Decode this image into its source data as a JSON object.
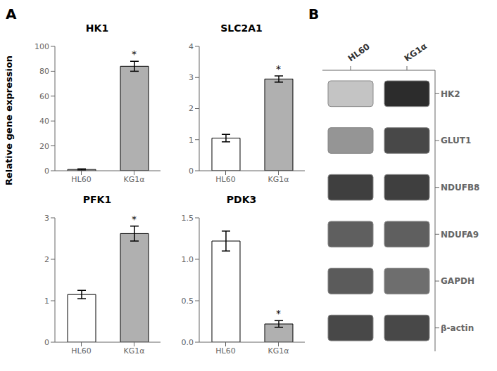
{
  "chart_data": [
    {
      "type": "bar",
      "title": "HK1",
      "ylabel": "Relative gene expression",
      "categories": [
        "HL60",
        "KG1α"
      ],
      "values": [
        1.0,
        84.0
      ],
      "errors": [
        0.5,
        4.0
      ],
      "colors": [
        "white",
        "#b0b0b0"
      ],
      "ylim": [
        0,
        100
      ],
      "yticks": [
        0,
        20,
        40,
        60,
        80,
        100
      ],
      "annotations": [
        {
          "text": "A"
        },
        {
          "text": "*",
          "category": "KG1α"
        }
      ]
    },
    {
      "type": "bar",
      "title": "SLC2A1",
      "categories": [
        "HL60",
        "KG1α"
      ],
      "values": [
        1.05,
        2.95
      ],
      "errors": [
        0.12,
        0.1
      ],
      "colors": [
        "white",
        "#b0b0b0"
      ],
      "ylim": [
        0,
        4
      ],
      "yticks": [
        0,
        1,
        2,
        3,
        4
      ],
      "annotations": [
        {
          "text": "*",
          "category": "KG1α"
        }
      ]
    },
    {
      "type": "bar",
      "title": "PFK1",
      "categories": [
        "HL60",
        "KG1α"
      ],
      "values": [
        1.15,
        2.62
      ],
      "errors": [
        0.1,
        0.18
      ],
      "colors": [
        "white",
        "#b0b0b0"
      ],
      "ylim": [
        0,
        3
      ],
      "yticks": [
        0,
        1,
        2,
        3
      ],
      "annotations": [
        {
          "text": "*",
          "category": "KG1α"
        }
      ]
    },
    {
      "type": "bar",
      "title": "PDK3",
      "categories": [
        "HL60",
        "KG1α"
      ],
      "values": [
        1.22,
        0.22
      ],
      "errors": [
        0.12,
        0.04
      ],
      "colors": [
        "white",
        "#b0b0b0"
      ],
      "ylim": [
        0,
        1.5
      ],
      "yticks": [
        {
          "value": 0,
          "label": "0.0"
        },
        {
          "value": 0.5,
          "label": "0.5"
        },
        {
          "value": 1.0,
          "label": "1.0"
        },
        {
          "value": 1.5,
          "label": "1.5"
        }
      ],
      "annotations": [
        {
          "text": "*",
          "category": "KG1α"
        }
      ]
    },
    {
      "type": "heatmap",
      "x": [
        "HL60",
        "KG1α"
      ],
      "y": [
        "HK2",
        "GLUT1",
        "NDUFB8",
        "NDUFA9",
        "GAPDH",
        "β-actin"
      ],
      "cells": [
        [
          0.25,
          0.9
        ],
        [
          0.45,
          0.78
        ],
        [
          0.82,
          0.82
        ],
        [
          0.68,
          0.68
        ],
        [
          0.7,
          0.62
        ],
        [
          0.78,
          0.78
        ]
      ],
      "annotations": [
        {
          "text": "B"
        }
      ]
    }
  ]
}
